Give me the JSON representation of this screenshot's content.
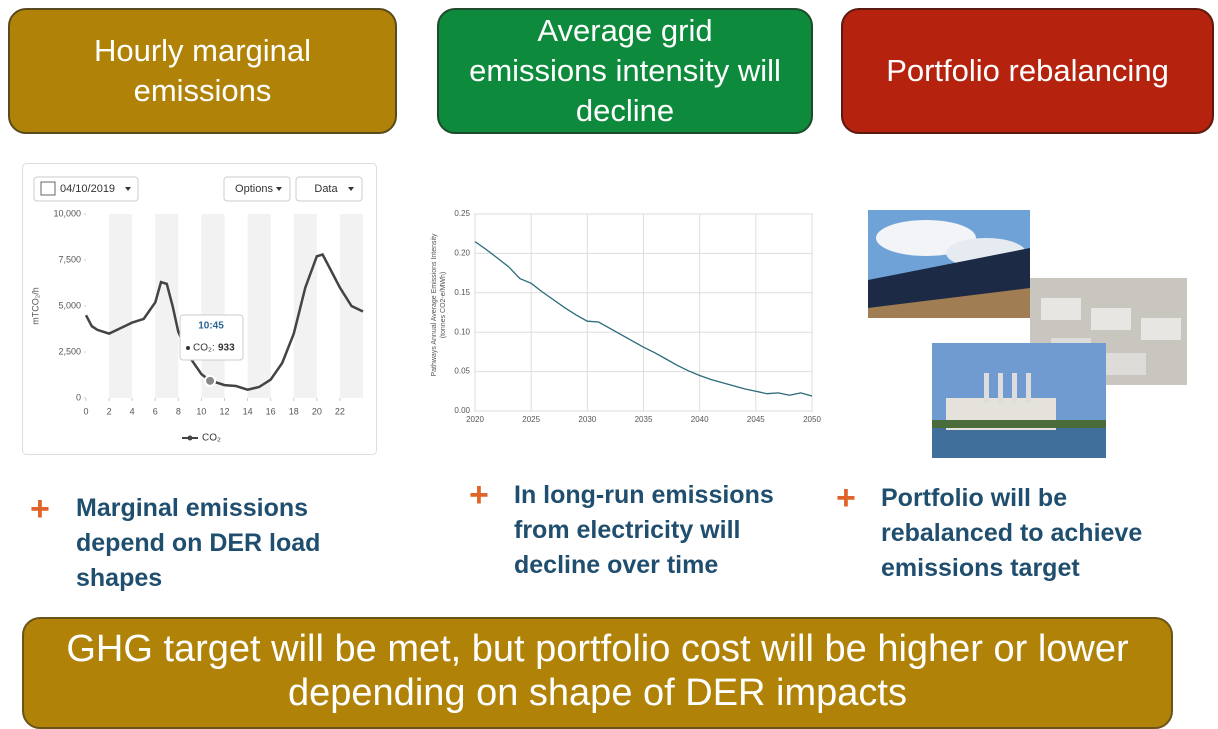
{
  "header_boxes": [
    "Hourly marginal emissions",
    "Average grid emissions intensity will decline",
    "Portfolio rebalancing"
  ],
  "left_chart": {
    "type": "line",
    "date": "04/10/2019",
    "buttons": [
      "Options",
      "Data"
    ],
    "ylabel": "mTCO₂/h",
    "legend": "CO₂",
    "tooltip": {
      "time": "10:45",
      "label": "CO₂:",
      "value": 933,
      "x": 10.75
    },
    "color": "#444444",
    "xlim": [
      0,
      24
    ],
    "ylim": [
      0,
      10000
    ],
    "xticks": [
      0,
      2,
      4,
      6,
      8,
      10,
      12,
      14,
      16,
      18,
      20,
      22
    ],
    "yticks": [
      0,
      {
        "value": 2500,
        "label": "2,500"
      },
      {
        "value": 5000,
        "label": "5,000"
      },
      {
        "value": 7500,
        "label": "7,500"
      },
      {
        "value": 10000,
        "label": "10,000"
      }
    ],
    "x": [
      0,
      0.5,
      1,
      2,
      3,
      4,
      5,
      6,
      6.5,
      7,
      7.5,
      8,
      9,
      10,
      10.75,
      11,
      12,
      13,
      14,
      15,
      16,
      17,
      18,
      19,
      20,
      20.5,
      21,
      22,
      23,
      24
    ],
    "values": [
      4500,
      3900,
      3700,
      3500,
      3800,
      4100,
      4300,
      5200,
      6300,
      6200,
      5000,
      3600,
      2200,
      1300,
      933,
      900,
      700,
      650,
      450,
      600,
      1000,
      1900,
      3500,
      6000,
      7700,
      7800,
      7200,
      6000,
      5000,
      4700
    ]
  },
  "middle_chart": {
    "type": "line",
    "ylabel": [
      "Pathways Annual Average Emissions Intensity",
      "(tonnes CO2-e/MWh)"
    ],
    "color": "#2a6a7a",
    "grid": true,
    "xlim": [
      2020,
      2050
    ],
    "ylim": [
      0,
      0.25
    ],
    "xticks": [
      2020,
      2025,
      2030,
      2035,
      2040,
      2045,
      2050
    ],
    "yticks": [
      {
        "value": 0,
        "label": "0.00"
      },
      0.05,
      {
        "value": 0.1,
        "label": "0.10"
      },
      0.15,
      {
        "value": 0.2,
        "label": "0.20"
      },
      0.25
    ],
    "x": [
      2020,
      2021,
      2022,
      2023,
      2024,
      2025,
      2026,
      2027,
      2028,
      2029,
      2030,
      2031,
      2032,
      2033,
      2034,
      2035,
      2036,
      2037,
      2038,
      2039,
      2040,
      2041,
      2042,
      2043,
      2044,
      2045,
      2046,
      2047,
      2048,
      2049,
      2050
    ],
    "values": [
      0.215,
      0.205,
      0.194,
      0.183,
      0.168,
      0.162,
      0.151,
      0.141,
      0.131,
      0.122,
      0.114,
      0.113,
      0.105,
      0.097,
      0.089,
      0.081,
      0.074,
      0.066,
      0.058,
      0.051,
      0.045,
      0.04,
      0.036,
      0.032,
      0.028,
      0.025,
      0.022,
      0.023,
      0.02,
      0.023,
      0.019
    ]
  },
  "bullets": [
    {
      "marker": "+",
      "text": "Marginal emissions depend on DER load shapes"
    },
    {
      "marker": "+",
      "text": "In long-run emissions from electricity will decline over time"
    },
    {
      "marker": "+",
      "text": "Portfolio will be rebalanced to achieve emissions target"
    }
  ],
  "banner": "GHG target will be met, but portfolio cost will be higher or lower depending on shape of DER impacts"
}
